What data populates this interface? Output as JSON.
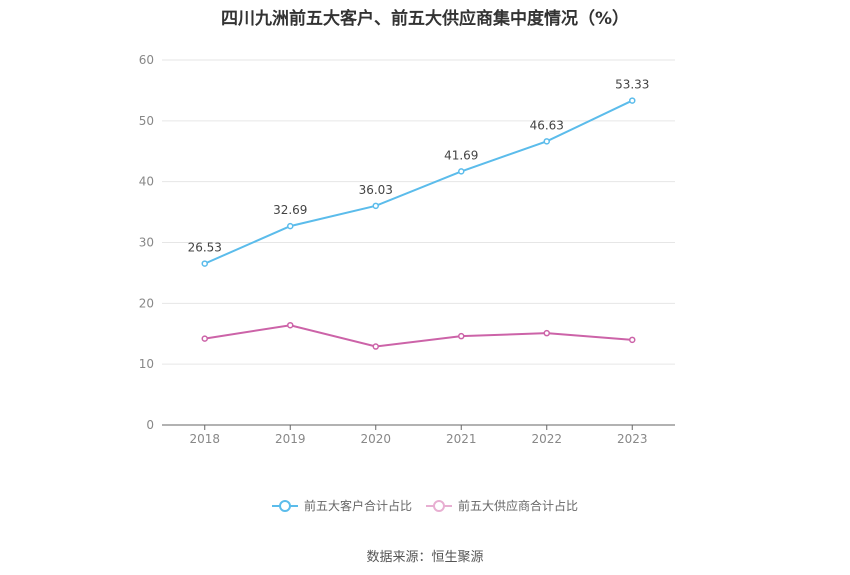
{
  "chart_data": {
    "type": "line",
    "title": "四川九洲前五大客户、前五大供应商集中度情况（%）",
    "categories": [
      "2018",
      "2019",
      "2020",
      "2021",
      "2022",
      "2023"
    ],
    "ylim": [
      0,
      60
    ],
    "yticks": [
      0,
      10,
      20,
      30,
      40,
      50,
      60
    ],
    "grid": true,
    "legend_position": "bottom",
    "series": [
      {
        "name": "前五大客户合计占比",
        "values": [
          26.53,
          32.69,
          36.03,
          41.69,
          46.63,
          53.33
        ],
        "labels": [
          "26.53",
          "32.69",
          "36.03",
          "41.69",
          "46.63",
          "53.33"
        ],
        "show_labels": true,
        "color": "#5BBCEB"
      },
      {
        "name": "前五大供应商合计占比",
        "values": [
          14.2,
          16.4,
          12.9,
          14.6,
          15.1,
          14.0
        ],
        "show_labels": false,
        "color": "#CC63A8"
      }
    ]
  },
  "source": "数据来源：恒生聚源"
}
